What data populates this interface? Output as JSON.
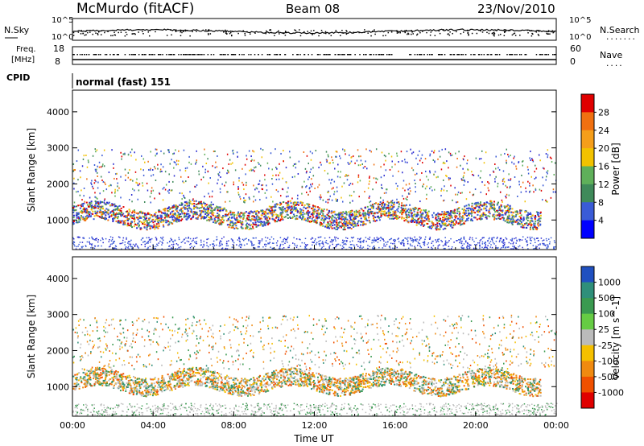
{
  "header": {
    "station": "McMurdo (fitACF)",
    "beam": "Beam 08",
    "date": "23/Nov/2010"
  },
  "noise_panel": {
    "left_label": "N.Sky",
    "right_label": "N.Search",
    "left_ticks": [
      "10^5",
      "10^0"
    ],
    "right_ticks": [
      "10^5",
      "10^0"
    ],
    "right_legend": "......."
  },
  "freq_panel": {
    "left_label_1": "Freq.",
    "left_label_2": "[MHz]",
    "left_ticks": [
      "18",
      "8"
    ],
    "right_label": "Nave",
    "right_ticks": [
      "60",
      "0"
    ],
    "right_legend": "...."
  },
  "cpid": {
    "label": "CPID",
    "mode": "normal (fast) 151"
  },
  "chart_data": [
    {
      "type": "heatmap",
      "name": "power",
      "ylabel": "Slant Range [km]",
      "ylim": [
        180,
        4600
      ],
      "yticks": [
        "1000",
        "2000",
        "3000",
        "4000"
      ],
      "ytick_values": [
        1000,
        2000,
        3000,
        4000
      ],
      "xlim": [
        0,
        24
      ],
      "colorbar_label": "Power [dB]",
      "colorbar_ticks": [
        "4",
        "8",
        "12",
        "16",
        "20",
        "24",
        "28"
      ],
      "colorbar_tick_values": [
        4,
        8,
        12,
        16,
        20,
        24,
        28
      ],
      "colorbar_range": [
        0,
        32
      ],
      "colorbar_colors": [
        "#0000ff",
        "#3a5bd6",
        "#3f8a5a",
        "#5fb05a",
        "#f2c200",
        "#f59e1a",
        "#f07010",
        "#e00000"
      ]
    },
    {
      "type": "heatmap",
      "name": "velocity",
      "ylabel": "Slant Range [km]",
      "ylim": [
        180,
        4600
      ],
      "yticks": [
        "1000",
        "2000",
        "3000",
        "4000"
      ],
      "ytick_values": [
        1000,
        2000,
        3000,
        4000
      ],
      "xlim": [
        0,
        24
      ],
      "xlabel": "Time UT",
      "xticks": [
        "00:00",
        "04:00",
        "08:00",
        "12:00",
        "16:00",
        "20:00",
        "00:00"
      ],
      "xtick_values": [
        0,
        4,
        8,
        12,
        16,
        20,
        24
      ],
      "colorbar_label": "Velocity [m s^-1]",
      "colorbar_ticks": [
        "1000",
        "500",
        "100",
        "25",
        "-25",
        "-100",
        "-500",
        "-1000"
      ],
      "colorbar_colors": [
        "#2050c0",
        "#2f8f7a",
        "#3a9a50",
        "#66cc44",
        "#bbbbbb",
        "#f5c000",
        "#f08a10",
        "#f05000",
        "#e00000"
      ]
    }
  ],
  "colors": {
    "axis": "#000000",
    "background": "#ffffff"
  }
}
